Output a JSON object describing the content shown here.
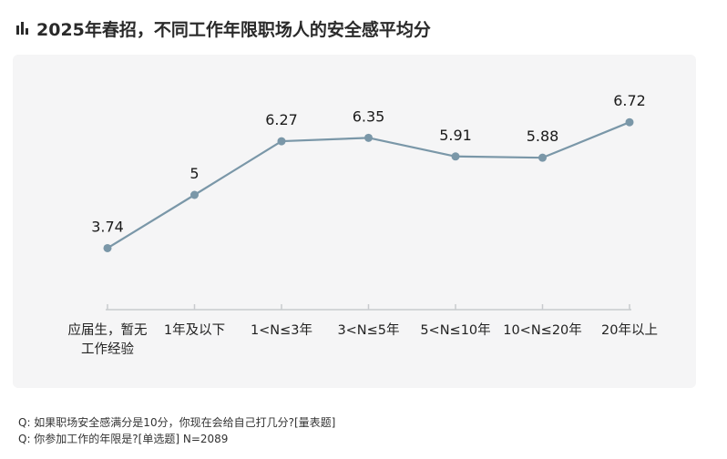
{
  "header": {
    "title": "2025年春招，不同工作年限职场人的安全感平均分",
    "icon": "bar-chart-icon"
  },
  "chart_data": {
    "type": "line",
    "title": "2025年春招，不同工作年限职场人的安全感平均分",
    "categories": [
      "应届生，暂无工作经验",
      "1年及以下",
      "1<N≤3年",
      "3<N≤5年",
      "5<N≤10年",
      "10<N≤20年",
      "20年以上"
    ],
    "category_lines": [
      [
        "应届生，暂无",
        "工作经验"
      ],
      [
        "1年及以下"
      ],
      [
        "1<N≤3年"
      ],
      [
        "3<N≤5年"
      ],
      [
        "5<N≤10年"
      ],
      [
        "10<N≤20年"
      ],
      [
        "20年以上"
      ]
    ],
    "values": [
      3.74,
      5,
      6.27,
      6.35,
      5.91,
      5.88,
      6.72
    ],
    "labels": [
      "3.74",
      "5",
      "6.27",
      "6.35",
      "5.91",
      "5.88",
      "6.72"
    ],
    "ylim": [
      2.5,
      7.5
    ],
    "grid": false,
    "line_color": "#7a97a8",
    "marker_color": "#7a97a8",
    "axis_color": "#c8cbce"
  },
  "notes": [
    "Q:  如果职场安全感满分是10分，你现在会给自己打几分?[量表题]",
    "Q:  你参加工作的年限是?[单选题]   N=2089"
  ]
}
